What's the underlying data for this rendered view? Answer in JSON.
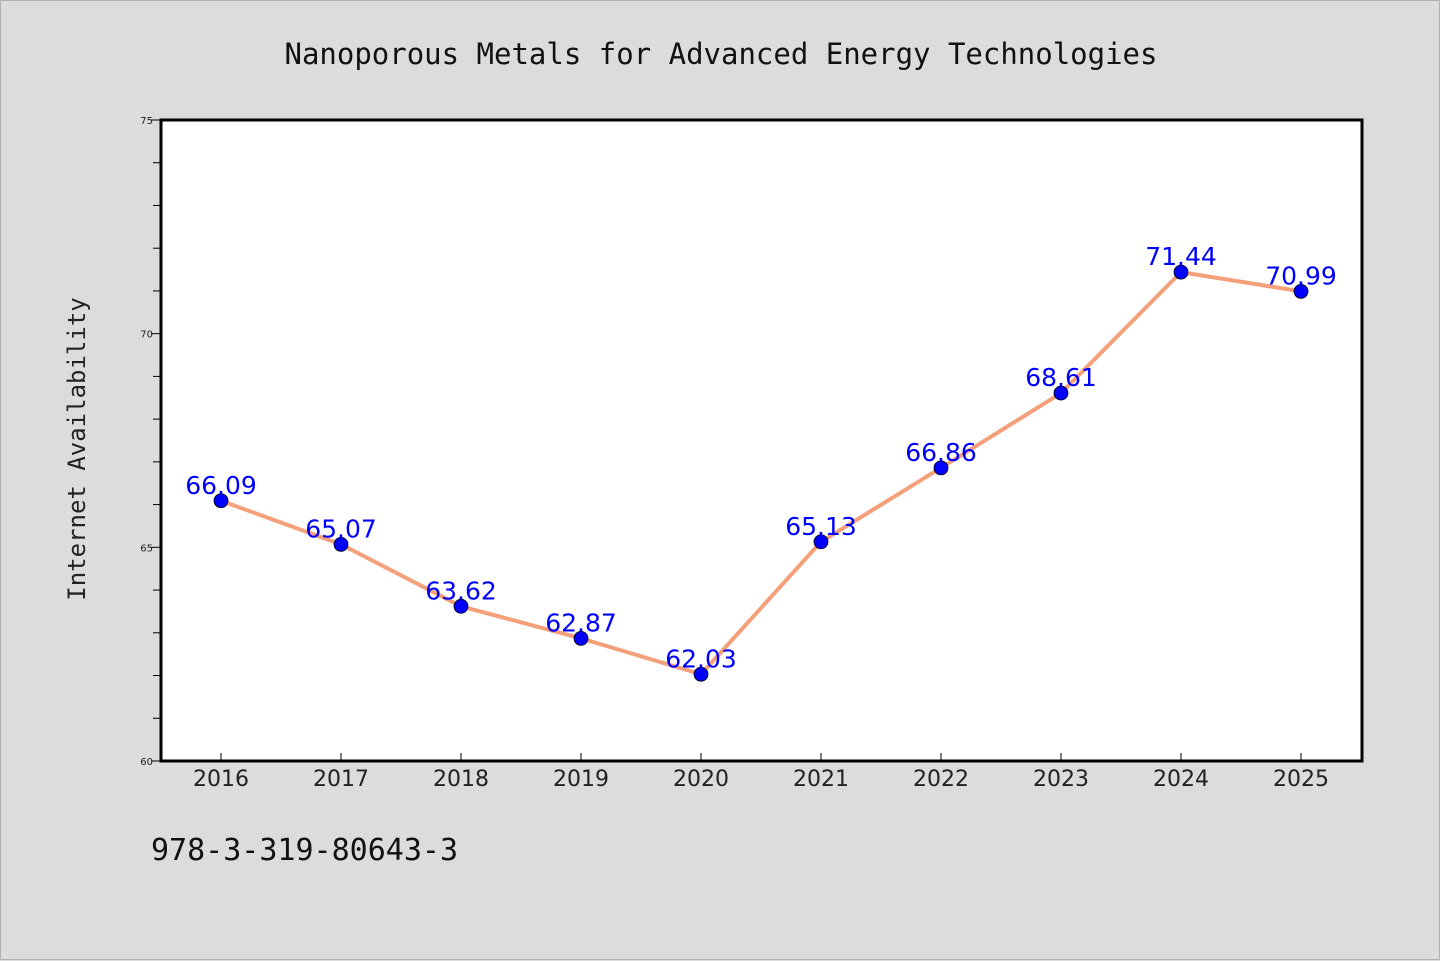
{
  "chart_data": {
    "type": "line",
    "title": "Nanoporous Metals for Advanced Energy Technologies",
    "xlabel": "",
    "ylabel": "Internet Availability",
    "categories": [
      "2016",
      "2017",
      "2018",
      "2019",
      "2020",
      "2021",
      "2022",
      "2023",
      "2024",
      "2025"
    ],
    "series": [
      {
        "values": [
          66.09,
          65.07,
          63.62,
          62.87,
          62.03,
          65.13,
          66.86,
          68.61,
          71.44,
          70.99
        ],
        "labels": [
          "66.09",
          "65.07",
          "63.62",
          "62.87",
          "62.03",
          "65.13",
          "66.86",
          "68.61",
          "71.44",
          "70.99"
        ],
        "line_color": "#f4a07a",
        "marker_color": "#0000ff"
      }
    ],
    "ylim": [
      60,
      75
    ],
    "yticks": [
      60,
      65,
      70,
      75
    ],
    "grid": false,
    "legend": "none"
  },
  "footer": {
    "isbn": "978-3-319-80643-3"
  },
  "colors": {
    "background": "#dcdcdc",
    "plot_background": "#ffffff",
    "line": "#f4a07a",
    "marker": "#0000ff",
    "data_label": "#0000ff"
  }
}
